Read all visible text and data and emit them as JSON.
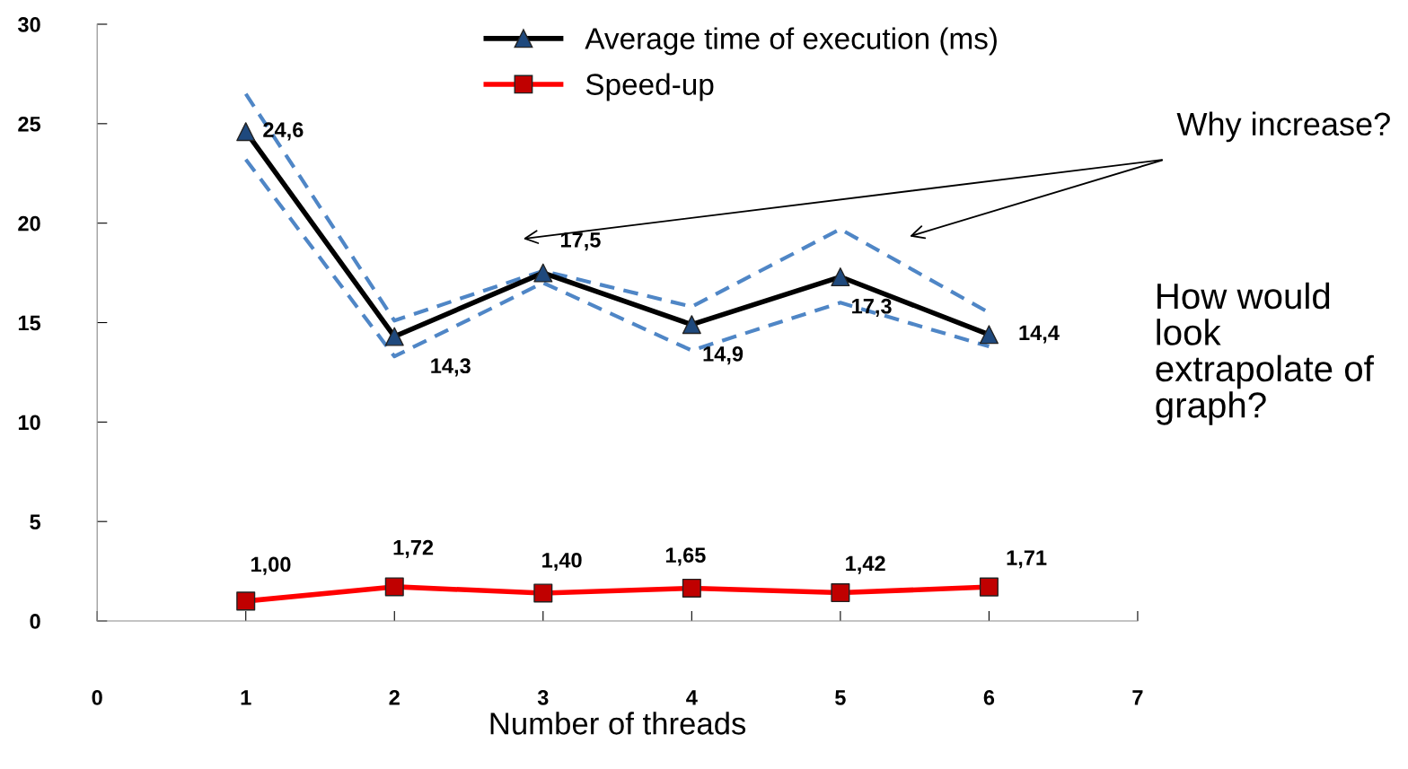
{
  "chart_data": {
    "type": "line",
    "xlabel": "Number of threads",
    "x": [
      1,
      2,
      3,
      4,
      5,
      6
    ],
    "series": [
      {
        "color": "#4f86c6",
        "line_style": "dashed",
        "marker": "none",
        "values": [
          23.2,
          13.3,
          17.0,
          13.6,
          16.0,
          13.8
        ]
      },
      {
        "color": "#4f86c6",
        "line_style": "dashed",
        "marker": "none",
        "values": [
          26.5,
          15.1,
          17.6,
          15.8,
          19.7,
          15.5
        ]
      },
      {
        "name": "Average time of execution (ms)",
        "color": "#000000",
        "colors": [
          "#1f497d",
          "#1f497d",
          "#1f497d",
          "#1f497d",
          "#1f497d",
          "#1f497d"
        ],
        "marker": "triangle",
        "values": [
          24.6,
          14.3,
          17.5,
          14.9,
          17.3,
          14.4
        ],
        "value_labels": [
          "24,6",
          "14,3",
          "17,5",
          "14,9",
          "17,3",
          "14,4"
        ]
      },
      {
        "name": "Speed-up",
        "color": "#ff0000",
        "colors": [
          "#c00000",
          "#c00000",
          "#c00000",
          "#c00000",
          "#c00000",
          "#c00000"
        ],
        "marker": "square",
        "values": [
          1.0,
          1.72,
          1.4,
          1.65,
          1.42,
          1.71
        ],
        "value_labels": [
          "1,00",
          "1,72",
          "1,40",
          "1,65",
          "1,42",
          "1,71"
        ]
      }
    ],
    "xlim": [
      0,
      7
    ],
    "xticks": [
      0,
      1,
      2,
      3,
      4,
      5,
      6,
      7
    ],
    "ylim": [
      0,
      30
    ],
    "yticks": [
      0,
      5,
      10,
      15,
      20,
      25,
      30
    ],
    "grid": false,
    "legend": "top",
    "annotations": [
      "Why increase?",
      "How would look extrapolate of graph?"
    ]
  }
}
